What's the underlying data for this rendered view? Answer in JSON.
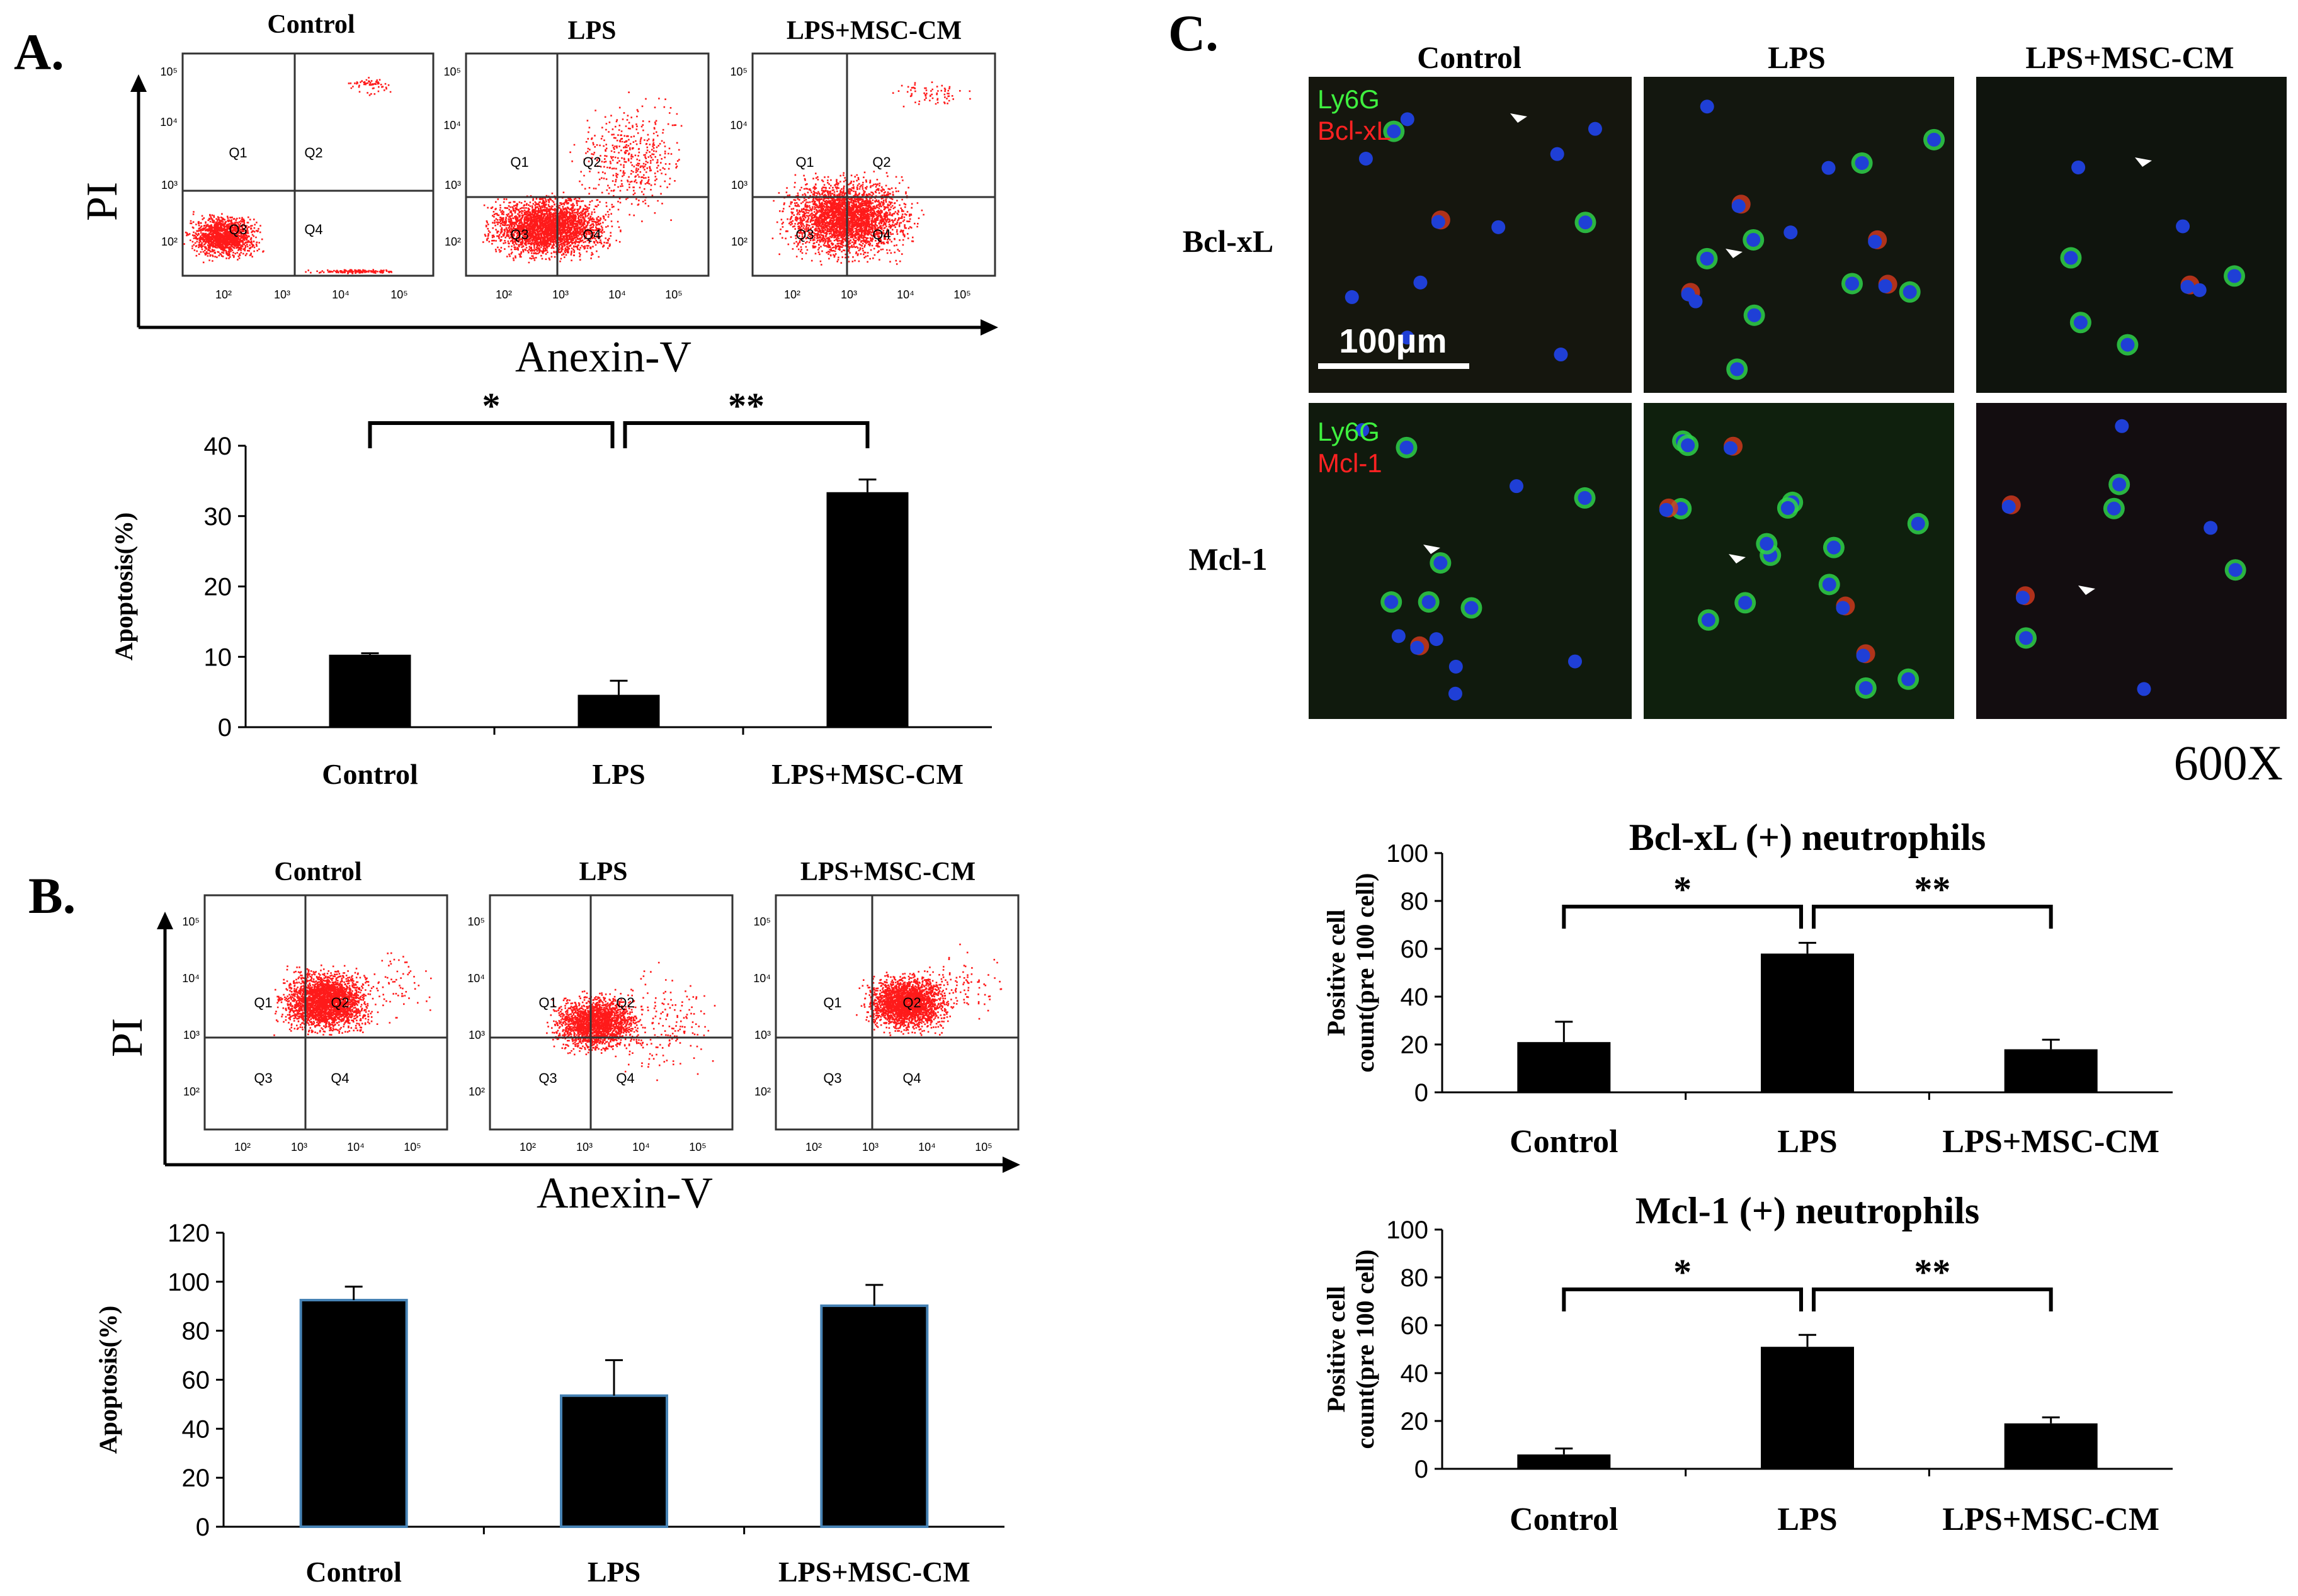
{
  "figure": {
    "panels": {
      "a": "A.",
      "b": "B.",
      "c": "C."
    },
    "scale_bar": "100μm",
    "magnification": "600X",
    "micrographs": {
      "columns": [
        "Control",
        "LPS",
        "LPS+MSC-CM"
      ],
      "rows": [
        {
          "label": "Bcl-xL",
          "marker_green": "Ly6G",
          "marker_red": "Bcl-xL"
        },
        {
          "label": "Mcl-1",
          "marker_green": "Ly6G",
          "marker_red": "Mcl-1"
        }
      ]
    }
  },
  "flow": [
    {
      "groups": [
        "Control",
        "LPS",
        "LPS+MSC-CM"
      ],
      "quadrants": [
        "Q1",
        "Q2",
        "Q3",
        "Q4"
      ],
      "y_axis_label": "PI",
      "x_axis_label": "Anexin-V",
      "tick_labels": [
        "10²",
        "10³",
        "10⁴",
        "10⁵"
      ]
    },
    {
      "groups": [
        "Control",
        "LPS",
        "LPS+MSC-CM"
      ],
      "quadrants": [
        "Q1",
        "Q2",
        "Q3",
        "Q4"
      ],
      "y_axis_label": "PI",
      "x_axis_label": "Anexin-V",
      "tick_labels": [
        "10²",
        "10³",
        "10⁴",
        "10⁵"
      ]
    }
  ],
  "chart_data": [
    {
      "id": "A",
      "type": "bar",
      "title": "",
      "categories": [
        "Control",
        "LPS",
        "LPS+MSC-CM"
      ],
      "values": [
        10.3,
        4.6,
        33.4
      ],
      "errors": [
        0.2,
        2.0,
        1.8
      ],
      "xlabel": "",
      "ylabel": "Apoptosis(%)",
      "ylim": [
        0,
        40
      ],
      "yticks": [
        0,
        10,
        20,
        30,
        40
      ],
      "significance": [
        {
          "from": 0,
          "to": 1,
          "label": "*"
        },
        {
          "from": 1,
          "to": 2,
          "label": "**"
        }
      ]
    },
    {
      "id": "B",
      "type": "bar",
      "title": "",
      "categories": [
        "Control",
        "LPS",
        "LPS+MSC-CM"
      ],
      "values": [
        92.5,
        53.5,
        90.2
      ],
      "errors": [
        5.5,
        14.5,
        8.5
      ],
      "xlabel": "",
      "ylabel": "Apoptosis(%)",
      "ylim": [
        0,
        120
      ],
      "yticks": [
        0,
        20,
        40,
        60,
        80,
        100,
        120
      ],
      "significance": []
    },
    {
      "id": "C1",
      "type": "bar",
      "title": "Bcl-xL (+) neutrophils",
      "categories": [
        "Control",
        "LPS",
        "LPS+MSC-CM"
      ],
      "values": [
        21,
        58,
        18
      ],
      "errors": [
        8.5,
        4.5,
        4
      ],
      "xlabel": "",
      "ylabel": "Positive cell count(pre 100 cell)",
      "ylim": [
        0,
        100
      ],
      "yticks": [
        0,
        20,
        40,
        60,
        80,
        100
      ],
      "significance": [
        {
          "from": 0,
          "to": 1,
          "label": "*"
        },
        {
          "from": 1,
          "to": 2,
          "label": "**"
        }
      ]
    },
    {
      "id": "C2",
      "type": "bar",
      "title": "Mcl-1 (+) neutrophils",
      "categories": [
        "Control",
        "LPS",
        "LPS+MSC-CM"
      ],
      "values": [
        6,
        51,
        19
      ],
      "errors": [
        2.5,
        5,
        2.5
      ],
      "xlabel": "",
      "ylabel": "Positive cell count(pre 100 cell)",
      "ylim": [
        0,
        100
      ],
      "yticks": [
        0,
        20,
        40,
        60,
        80,
        100
      ],
      "significance": [
        {
          "from": 0,
          "to": 1,
          "label": "*"
        },
        {
          "from": 1,
          "to": 2,
          "label": "**"
        }
      ]
    }
  ]
}
